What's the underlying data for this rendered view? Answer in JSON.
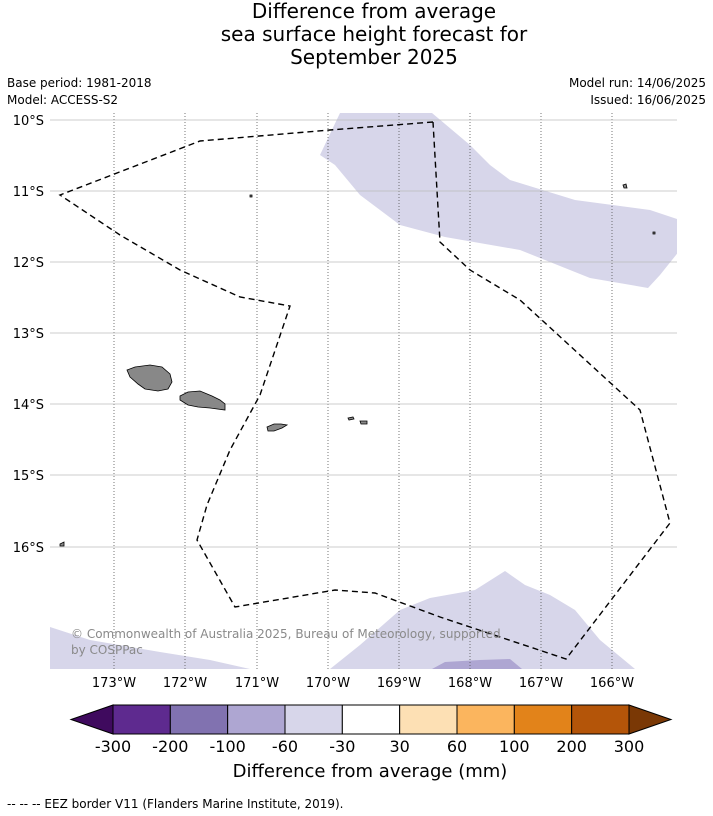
{
  "title_lines": [
    "Difference from average",
    "sea surface height forecast for",
    "September 2025"
  ],
  "meta_left": [
    "Base period: 1981-2018",
    "Model: ACCESS-S2"
  ],
  "meta_right": [
    "Model run: 14/06/2025",
    "Issued: 16/06/2025"
  ],
  "lat_labels": [
    "10°S",
    "11°S",
    "12°S",
    "13°S",
    "14°S",
    "15°S",
    "16°S"
  ],
  "lon_labels": [
    "173°W",
    "172°W",
    "171°W",
    "170°W",
    "169°W",
    "168°W",
    "167°W",
    "166°W"
  ],
  "copyright": [
    "© Commonwealth of Australia 2025, Bureau of Meteorology, supported",
    "by COSPPac"
  ],
  "colorbar": {
    "title": "Difference from average (mm)",
    "ticks": [
      "-300",
      "-200",
      "-100",
      "-60",
      "-30",
      "30",
      "60",
      "100",
      "200",
      "300"
    ],
    "colors": [
      "#3f0a5e",
      "#5e2a8f",
      "#8172b0",
      "#aea6d2",
      "#d7d6ea",
      "#ffffff",
      "#fde0b4",
      "#fbb55e",
      "#e2831a",
      "#b45509",
      "#7a3805"
    ]
  },
  "footer": "--  --  -- EEZ border V11 (Flanders Marine Institute, 2019)."
}
